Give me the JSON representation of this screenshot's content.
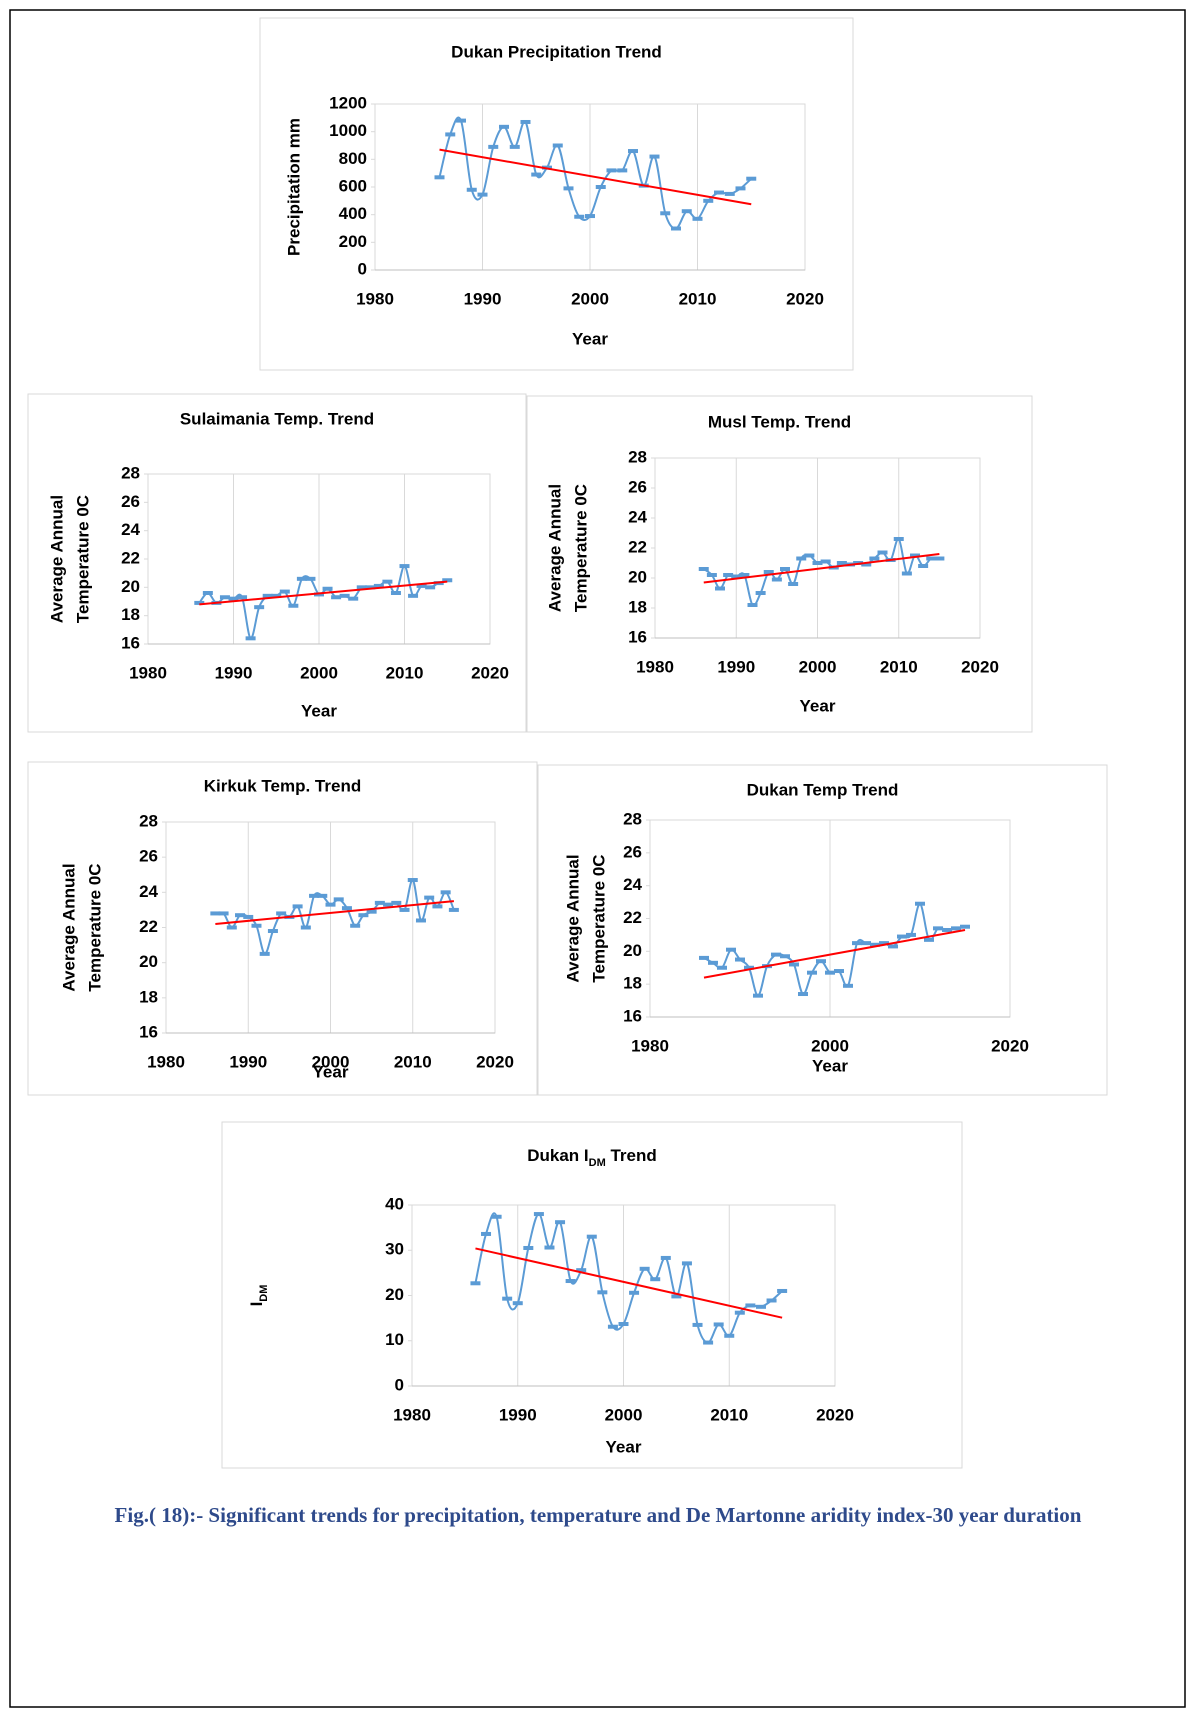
{
  "chart_data": [
    {
      "type": "line",
      "title": "Dukan Precipitation Trend",
      "xlabel": "Year",
      "ylabel": [
        "Precipitation mm"
      ],
      "x": [
        1986,
        1987,
        1988,
        1989,
        1990,
        1991,
        1992,
        1993,
        1994,
        1995,
        1996,
        1997,
        1998,
        1999,
        2000,
        2001,
        2002,
        2003,
        2004,
        2005,
        2006,
        2007,
        2008,
        2009,
        2010,
        2011,
        2012,
        2013,
        2014,
        2015
      ],
      "series": [
        {
          "color": "#5b9bd5",
          "values": [
            670,
            980,
            1080,
            580,
            545,
            890,
            1035,
            890,
            1070,
            690,
            740,
            900,
            590,
            385,
            390,
            600,
            720,
            720,
            860,
            610,
            820,
            410,
            300,
            425,
            370,
            500,
            560,
            550,
            590,
            660
          ]
        }
      ],
      "trend": {
        "color": "#ff0000",
        "x": [
          1986,
          2015
        ],
        "values": [
          870,
          475
        ]
      },
      "xlim": [
        1980,
        2020
      ],
      "xticks": [
        1980,
        1990,
        2000,
        2010,
        2020
      ],
      "ylim": [
        0,
        1200
      ],
      "yticks": [
        0,
        200,
        400,
        600,
        800,
        1000,
        1200
      ],
      "grid": "x"
    },
    {
      "type": "line",
      "title": "Sulaimania Temp. Trend",
      "xlabel": "Year",
      "ylabel": [
        "Average Annual",
        "Temperature 0C"
      ],
      "x": [
        1986,
        1987,
        1988,
        1989,
        1990,
        1991,
        1992,
        1993,
        1994,
        1995,
        1996,
        1997,
        1998,
        1999,
        2000,
        2001,
        2002,
        2003,
        2004,
        2005,
        2006,
        2007,
        2008,
        2009,
        2010,
        2011,
        2012,
        2013,
        2014,
        2015
      ],
      "series": [
        {
          "color": "#5b9bd5",
          "values": [
            18.9,
            19.6,
            18.9,
            19.3,
            19.2,
            19.3,
            16.4,
            18.6,
            19.4,
            19.4,
            19.7,
            18.7,
            20.6,
            20.6,
            19.5,
            19.9,
            19.3,
            19.4,
            19.2,
            20.0,
            20.0,
            20.1,
            20.4,
            19.6,
            21.5,
            19.4,
            20.1,
            20.0,
            20.3,
            20.5
          ]
        }
      ],
      "trend": {
        "color": "#ff0000",
        "x": [
          1986,
          2015
        ],
        "values": [
          18.8,
          20.4
        ]
      },
      "xlim": [
        1980,
        2020
      ],
      "xticks": [
        1980,
        1990,
        2000,
        2010,
        2020
      ],
      "ylim": [
        16,
        28
      ],
      "yticks": [
        16,
        18,
        20,
        22,
        24,
        26,
        28
      ],
      "grid": "x"
    },
    {
      "type": "line",
      "title": "Musl Temp. Trend",
      "xlabel": "Year",
      "ylabel": [
        "Average Annual",
        "Temperature 0C"
      ],
      "x": [
        1986,
        1987,
        1988,
        1989,
        1990,
        1991,
        1992,
        1993,
        1994,
        1995,
        1996,
        1997,
        1998,
        1999,
        2000,
        2001,
        2002,
        2003,
        2004,
        2005,
        2006,
        2007,
        2008,
        2009,
        2010,
        2011,
        2012,
        2013,
        2014,
        2015
      ],
      "series": [
        {
          "color": "#5b9bd5",
          "values": [
            20.6,
            20.2,
            19.3,
            20.2,
            20.1,
            20.2,
            18.2,
            19.0,
            20.4,
            19.9,
            20.6,
            19.6,
            21.3,
            21.5,
            21.0,
            21.1,
            20.7,
            21.0,
            20.9,
            21.0,
            20.9,
            21.3,
            21.7,
            21.2,
            22.6,
            20.3,
            21.5,
            20.8,
            21.3,
            21.3
          ]
        }
      ],
      "trend": {
        "color": "#ff0000",
        "x": [
          1986,
          2015
        ],
        "values": [
          19.7,
          21.6
        ]
      },
      "xlim": [
        1980,
        2020
      ],
      "xticks": [
        1980,
        1990,
        2000,
        2010,
        2020
      ],
      "ylim": [
        16,
        28
      ],
      "yticks": [
        16,
        18,
        20,
        22,
        24,
        26,
        28
      ],
      "grid": "x"
    },
    {
      "type": "line",
      "title": "Kirkuk Temp. Trend",
      "xlabel": "Year",
      "ylabel": [
        "Average Annual",
        "Temperature 0C"
      ],
      "x": [
        1986,
        1987,
        1988,
        1989,
        1990,
        1991,
        1992,
        1993,
        1994,
        1995,
        1996,
        1997,
        1998,
        1999,
        2000,
        2001,
        2002,
        2003,
        2004,
        2005,
        2006,
        2007,
        2008,
        2009,
        2010,
        2011,
        2012,
        2013,
        2014,
        2015
      ],
      "series": [
        {
          "color": "#5b9bd5",
          "values": [
            22.8,
            22.8,
            22.0,
            22.7,
            22.6,
            22.1,
            20.5,
            21.8,
            22.8,
            22.6,
            23.2,
            22.0,
            23.8,
            23.8,
            23.3,
            23.6,
            23.1,
            22.1,
            22.7,
            22.9,
            23.4,
            23.3,
            23.4,
            23.0,
            24.7,
            22.4,
            23.7,
            23.2,
            24.0,
            23.0
          ]
        }
      ],
      "trend": {
        "color": "#ff0000",
        "x": [
          1986,
          2015
        ],
        "values": [
          22.2,
          23.5
        ]
      },
      "xlim": [
        1980,
        2020
      ],
      "xticks": [
        1980,
        1990,
        2000,
        2010,
        2020
      ],
      "ylim": [
        16,
        28
      ],
      "yticks": [
        16,
        18,
        20,
        22,
        24,
        26,
        28
      ],
      "grid": "x"
    },
    {
      "type": "line",
      "title": "Dukan Temp Trend",
      "xlabel": "Year",
      "ylabel": [
        "Average Annual",
        "Temperature 0C"
      ],
      "x": [
        1986,
        1987,
        1988,
        1989,
        1990,
        1991,
        1992,
        1993,
        1994,
        1995,
        1996,
        1997,
        1998,
        1999,
        2000,
        2001,
        2002,
        2003,
        2004,
        2005,
        2006,
        2007,
        2008,
        2009,
        2010,
        2011,
        2012,
        2013,
        2014,
        2015
      ],
      "series": [
        {
          "color": "#5b9bd5",
          "values": [
            19.6,
            19.3,
            19.0,
            20.1,
            19.5,
            19.0,
            17.3,
            19.1,
            19.8,
            19.7,
            19.2,
            17.4,
            18.7,
            19.4,
            18.7,
            18.8,
            17.9,
            20.5,
            20.5,
            20.4,
            20.5,
            20.3,
            20.9,
            21.0,
            22.9,
            20.7,
            21.4,
            21.3,
            21.4,
            21.5
          ]
        }
      ],
      "trend": {
        "color": "#ff0000",
        "x": [
          1986,
          2015
        ],
        "values": [
          18.4,
          21.3
        ]
      },
      "xlim": [
        1980,
        2020
      ],
      "xticks": [
        1980,
        2000,
        2020
      ],
      "ylim": [
        16,
        28
      ],
      "yticks": [
        16,
        18,
        20,
        22,
        24,
        26,
        28
      ],
      "grid": "x"
    },
    {
      "type": "line",
      "title": [
        "Dukan I",
        "DM",
        " Trend"
      ],
      "xlabel": "Year",
      "ylabel": [
        [
          "I",
          "DM"
        ]
      ],
      "x": [
        1986,
        1987,
        1988,
        1989,
        1990,
        1991,
        1992,
        1993,
        1994,
        1995,
        1996,
        1997,
        1998,
        1999,
        2000,
        2001,
        2002,
        2003,
        2004,
        2005,
        2006,
        2007,
        2008,
        2009,
        2010,
        2011,
        2012,
        2013,
        2014,
        2015
      ],
      "series": [
        {
          "color": "#5b9bd5",
          "values": [
            22.7,
            33.6,
            37.4,
            19.3,
            18.3,
            30.5,
            38.0,
            30.6,
            36.2,
            23.2,
            25.6,
            33.0,
            20.7,
            13.1,
            13.7,
            20.6,
            25.9,
            23.6,
            28.3,
            19.8,
            27.1,
            13.5,
            9.6,
            13.6,
            11.1,
            16.2,
            17.8,
            17.5,
            18.9,
            21.0
          ]
        }
      ],
      "trend": {
        "color": "#ff0000",
        "x": [
          1986,
          2015
        ],
        "values": [
          30.4,
          15.1
        ]
      },
      "xlim": [
        1980,
        2020
      ],
      "xticks": [
        1980,
        1990,
        2000,
        2010,
        2020
      ],
      "ylim": [
        0,
        40
      ],
      "yticks": [
        0,
        10,
        20,
        30,
        40
      ],
      "grid": "x"
    }
  ],
  "caption": "Fig.( 18):- Significant trends for precipitation, temperature and De Martonne aridity index-30 year duration"
}
